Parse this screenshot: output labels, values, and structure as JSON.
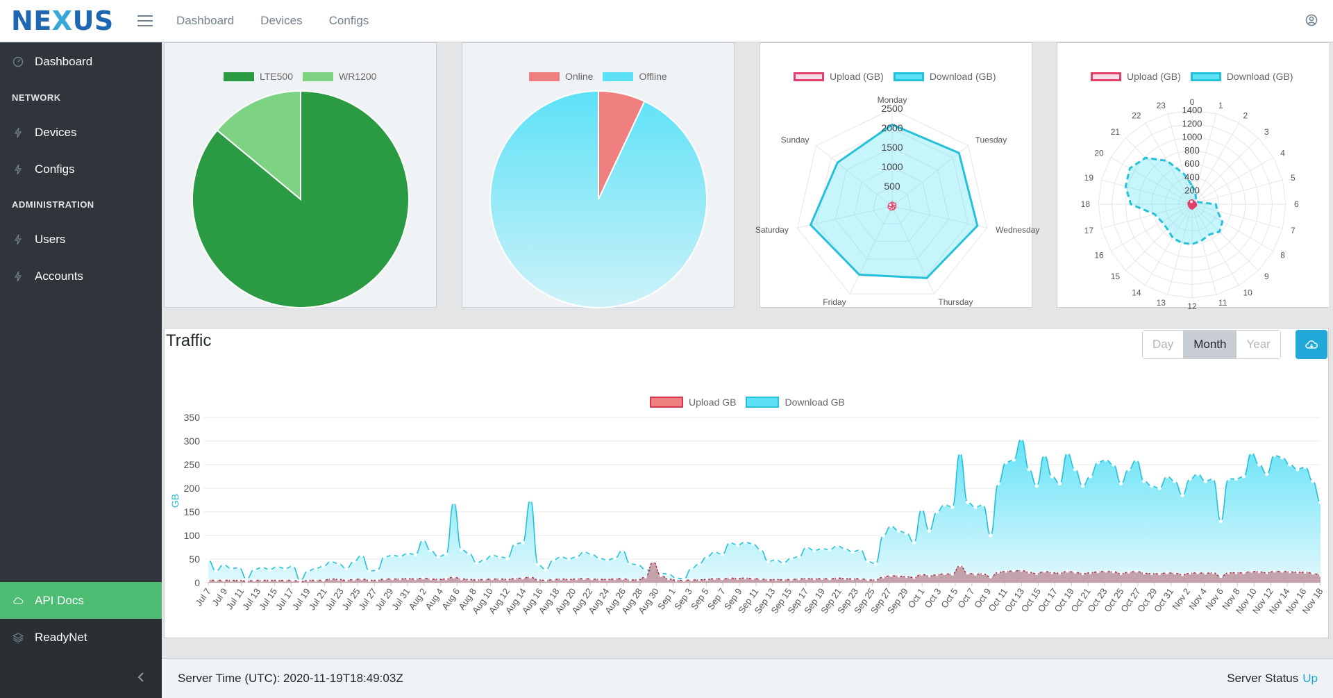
{
  "header": {
    "brand": {
      "pre": "NE",
      "x": "X",
      "post": "US"
    },
    "nav": [
      "Dashboard",
      "Devices",
      "Configs"
    ]
  },
  "sidebar": {
    "items": [
      {
        "label": "Dashboard",
        "icon": "speedometer-icon"
      },
      {
        "title": "NETWORK"
      },
      {
        "label": "Devices",
        "icon": "bolt-icon"
      },
      {
        "label": "Configs",
        "icon": "bolt-icon"
      },
      {
        "title": "ADMINISTRATION"
      },
      {
        "label": "Users",
        "icon": "bolt-icon"
      },
      {
        "label": "Accounts",
        "icon": "bolt-icon"
      }
    ],
    "bottom": [
      {
        "label": "API Docs",
        "icon": "cloud-icon"
      },
      {
        "label": "ReadyNet",
        "icon": "layers-icon"
      }
    ]
  },
  "colors": {
    "dark_green": "#2a9a43",
    "light_green": "#7dd382",
    "online": "#f08080",
    "offline": "#5ce1f7",
    "upload_border": "#e0406a",
    "download_border": "#25c0d9",
    "accent": "#20a8d8",
    "api_bg": "#4dbd74"
  },
  "chart_data": [
    {
      "type": "pie",
      "labels": [
        "LTE500",
        "WR1200"
      ],
      "values": [
        86,
        14
      ]
    },
    {
      "type": "pie",
      "labels": [
        "Online",
        "Offline"
      ],
      "values": [
        7,
        93
      ]
    },
    {
      "type": "radar",
      "labels": [
        "Monday",
        "Tuesday",
        "Wednesday",
        "Thursday",
        "Friday",
        "Saturday",
        "Sunday"
      ],
      "ticks": [
        "500",
        "1000",
        "1500",
        "2000",
        "2500"
      ],
      "rmax": 2500,
      "series": [
        {
          "name": "Upload (GB)",
          "values": [
            60,
            65,
            55,
            50,
            58,
            62,
            56
          ]
        },
        {
          "name": "Download (GB)",
          "values": [
            2100,
            2200,
            2250,
            2050,
            1950,
            2150,
            1800
          ]
        }
      ]
    },
    {
      "type": "radar",
      "labels": [
        "0",
        "1",
        "2",
        "3",
        "4",
        "5",
        "6",
        "7",
        "8",
        "9",
        "10",
        "11",
        "12",
        "13",
        "14",
        "15",
        "16",
        "17",
        "18",
        "19",
        "20",
        "21",
        "22",
        "23"
      ],
      "ticks": [
        "200",
        "400",
        "600",
        "800",
        "1000",
        "1200",
        "1400"
      ],
      "rmax": 1500,
      "series": [
        {
          "name": "Upload (GB)",
          "values": [
            40,
            30,
            25,
            30,
            30,
            35,
            40,
            45,
            40,
            35,
            30,
            40,
            50,
            45,
            40,
            30,
            35,
            30,
            30,
            40,
            35,
            30,
            40,
            40
          ]
        },
        {
          "name": "Download (GB)",
          "values": [
            300,
            200,
            120,
            80,
            80,
            120,
            380,
            420,
            560,
            620,
            560,
            600,
            640,
            640,
            620,
            560,
            560,
            620,
            980,
            1100,
            1150,
            1050,
            800,
            500
          ]
        }
      ]
    },
    {
      "type": "area",
      "title": "Traffic",
      "ylabel": "GB",
      "ylim": [
        0,
        350
      ],
      "yticks": [
        "0",
        "50",
        "100",
        "150",
        "200",
        "250",
        "300",
        "350"
      ],
      "series": [
        {
          "name": "Upload GB"
        },
        {
          "name": "Download GB"
        }
      ],
      "xticks": [
        "Jul 7",
        "Jul 9",
        "Jul 11",
        "Jul 13",
        "Jul 15",
        "Jul 17",
        "Jul 19",
        "Jul 21",
        "Jul 23",
        "Jul 25",
        "Jul 27",
        "Jul 29",
        "Jul 31",
        "Aug 2",
        "Aug 4",
        "Aug 6",
        "Aug 8",
        "Aug 10",
        "Aug 12",
        "Aug 14",
        "Aug 16",
        "Aug 18",
        "Aug 20",
        "Aug 22",
        "Aug 24",
        "Aug 26",
        "Aug 28",
        "Aug 30",
        "Sep 1",
        "Sep 3",
        "Sep 5",
        "Sep 7",
        "Sep 9",
        "Sep 11",
        "Sep 13",
        "Sep 15",
        "Sep 17",
        "Sep 19",
        "Sep 21",
        "Sep 23",
        "Sep 25",
        "Sep 27",
        "Sep 29",
        "Oct 1",
        "Oct 3",
        "Oct 5",
        "Oct 7",
        "Oct 9",
        "Oct 11",
        "Oct 13",
        "Oct 15",
        "Oct 17",
        "Oct 19",
        "Oct 21",
        "Oct 23",
        "Oct 25",
        "Oct 27",
        "Oct 29",
        "Oct 31",
        "Nov 2",
        "Nov 4",
        "Nov 6",
        "Nov 8",
        "Nov 10",
        "Nov 12",
        "Nov 14",
        "Nov 16",
        "Nov 18"
      ],
      "download": [
        48,
        25,
        38,
        30,
        32,
        8,
        28,
        32,
        28,
        34,
        30,
        35,
        5,
        25,
        30,
        35,
        45,
        40,
        30,
        45,
        58,
        25,
        26,
        55,
        58,
        56,
        62,
        60,
        90,
        68,
        55,
        60,
        170,
        70,
        62,
        42,
        48,
        58,
        55,
        52,
        82,
        85,
        175,
        38,
        28,
        48,
        55,
        50,
        55,
        65,
        60,
        52,
        48,
        52,
        68,
        40,
        38,
        28,
        25,
        20,
        18,
        10,
        8,
        30,
        40,
        55,
        65,
        60,
        85,
        80,
        86,
        82,
        70,
        45,
        48,
        42,
        52,
        55,
        75,
        68,
        72,
        70,
        78,
        72,
        65,
        70,
        45,
        40,
        100,
        120,
        110,
        105,
        85,
        155,
        110,
        150,
        165,
        160,
        275,
        170,
        160,
        165,
        100,
        210,
        255,
        260,
        305,
        240,
        205,
        270,
        225,
        210,
        275,
        240,
        205,
        225,
        255,
        260,
        250,
        210,
        240,
        260,
        215,
        205,
        200,
        225,
        215,
        185,
        220,
        230,
        215,
        220,
        130,
        220,
        220,
        225,
        275,
        250,
        230,
        270,
        265,
        250,
        240,
        245,
        215,
        170
      ],
      "upload": [
        5,
        5,
        5,
        5,
        5,
        3,
        5,
        5,
        5,
        5,
        5,
        5,
        2,
        5,
        5,
        5,
        8,
        7,
        5,
        7,
        8,
        5,
        5,
        8,
        8,
        8,
        9,
        8,
        10,
        8,
        7,
        8,
        12,
        8,
        7,
        6,
        7,
        8,
        8,
        7,
        9,
        10,
        12,
        6,
        5,
        7,
        8,
        7,
        8,
        9,
        8,
        7,
        7,
        8,
        9,
        6,
        6,
        12,
        45,
        15,
        8,
        5,
        5,
        6,
        6,
        7,
        9,
        8,
        10,
        9,
        10,
        9,
        8,
        6,
        7,
        6,
        7,
        8,
        9,
        8,
        9,
        8,
        10,
        9,
        8,
        9,
        6,
        6,
        12,
        15,
        14,
        13,
        11,
        18,
        14,
        17,
        19,
        18,
        36,
        20,
        18,
        19,
        12,
        22,
        24,
        25,
        26,
        22,
        19,
        24,
        21,
        20,
        24,
        22,
        19,
        21,
        23,
        24,
        23,
        19,
        22,
        24,
        20,
        19,
        19,
        21,
        20,
        17,
        20,
        21,
        20,
        21,
        13,
        21,
        21,
        21,
        24,
        23,
        21,
        24,
        24,
        23,
        22,
        22,
        20,
        16
      ]
    }
  ],
  "traffic": {
    "title": "Traffic",
    "range_buttons": [
      "Day",
      "Month",
      "Year"
    ],
    "active_range": "Month"
  },
  "footer": {
    "server_time": "Server Time (UTC): 2020-11-19T18:49:03Z",
    "status_label": "Server Status",
    "status_value": "Up"
  }
}
